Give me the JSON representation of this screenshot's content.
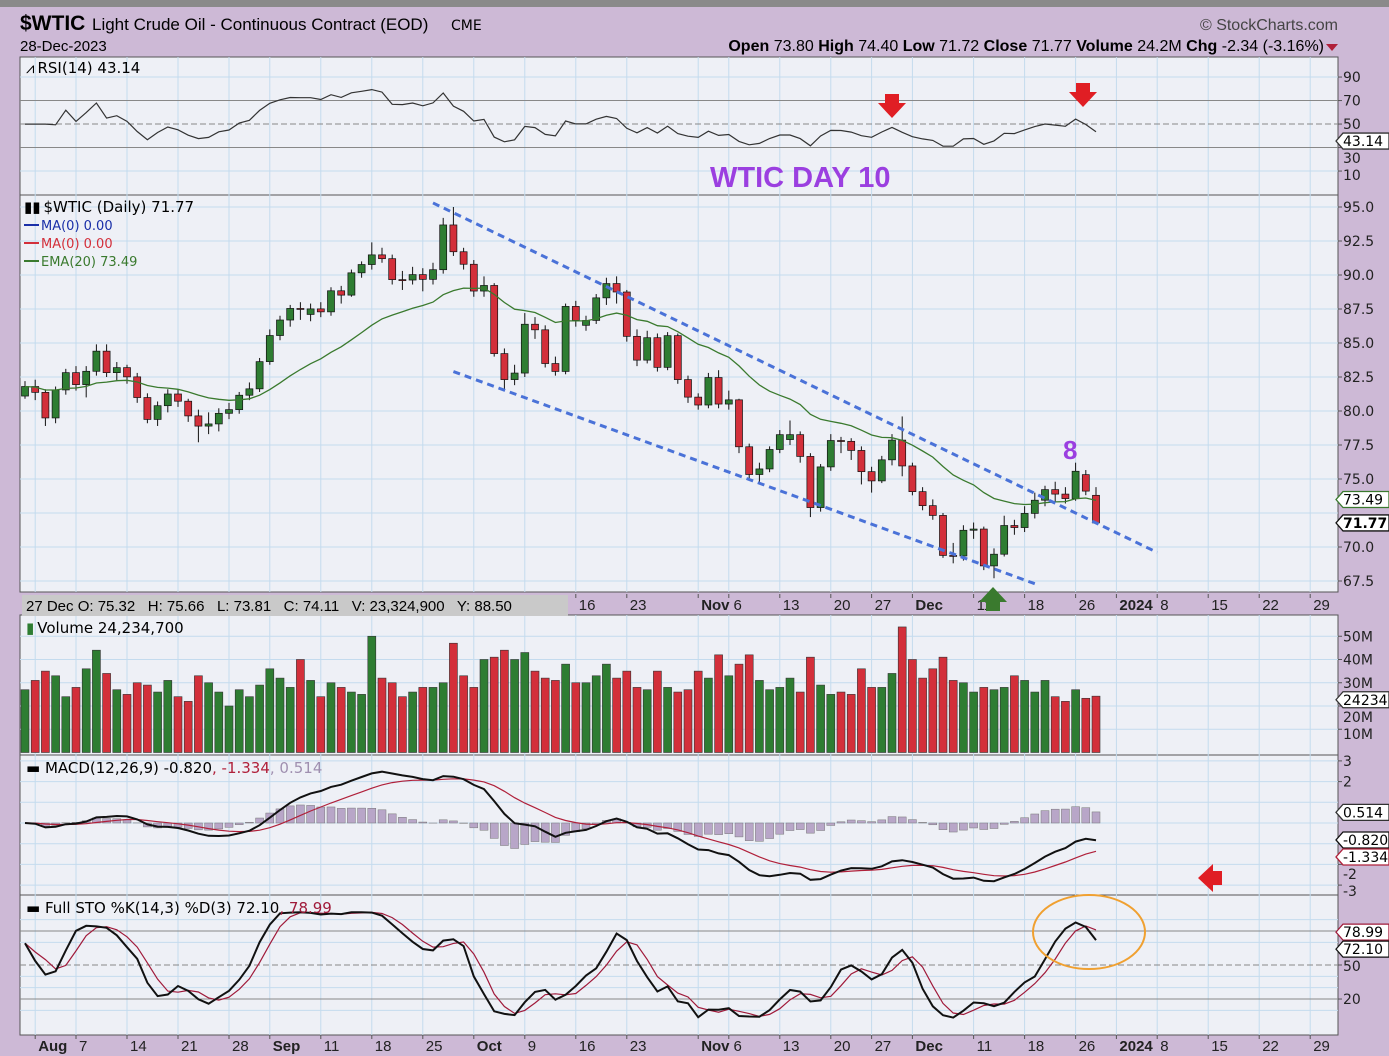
{
  "header": {
    "symbol": "$WTIC",
    "name": "Light Crude Oil - Continuous Contract (EOD)",
    "exchange": "CME",
    "date": "28-Dec-2023",
    "copyright": "© StockCharts.com",
    "open_label": "Open",
    "open": "73.80",
    "high_label": "High",
    "high": "74.40",
    "low_label": "Low",
    "low": "71.72",
    "close_label": "Close",
    "close": "71.77",
    "volume_label": "Volume",
    "volume": "24.2M",
    "chg_label": "Chg",
    "chg": "-2.34 (-3.16%)"
  },
  "info_box": "27 Dec O: 75.32   H: 75.66   L: 73.81   C: 74.11   V: 23,324,900   Y: 88.50",
  "colors": {
    "up": "#2e7d32",
    "down": "#d32f3a",
    "background": "#cdb9d6",
    "plot": "#eef0f6",
    "grid": "#c4dbee",
    "trendline": "#4a72d8",
    "annotation": "#9b3fe0",
    "ema": "#3a7a2e",
    "circle": "#f0a030"
  },
  "annotations": {
    "title": "WTIC DAY 10",
    "count": "8"
  },
  "chart_data": [
    {
      "type": "candlestick",
      "title": "$WTIC (Daily) 71.77",
      "legend": [
        {
          "label": "MA(0) 0.00",
          "color": "#1a2fa8"
        },
        {
          "label": "MA(0) 0.00",
          "color": "#d32f3a"
        },
        {
          "label": "EMA(20) 73.49",
          "color": "#3a7a2e"
        }
      ],
      "yticks": [
        "95.0",
        "92.5",
        "90.0",
        "87.5",
        "85.0",
        "82.5",
        "80.0",
        "77.5",
        "75.0",
        "70.0",
        "67.5"
      ],
      "ylim": [
        67,
        95.9
      ],
      "last_values": {
        "ema20": "73.49",
        "close": "71.77"
      },
      "dates": [
        "2023-07-31",
        "2023-08-01",
        "2023-08-02",
        "2023-08-03",
        "2023-08-04",
        "2023-08-07",
        "2023-08-08",
        "2023-08-09",
        "2023-08-10",
        "2023-08-11",
        "2023-08-14",
        "2023-08-15",
        "2023-08-16",
        "2023-08-17",
        "2023-08-18",
        "2023-08-21",
        "2023-08-22",
        "2023-08-23",
        "2023-08-24",
        "2023-08-25",
        "2023-08-28",
        "2023-08-29",
        "2023-08-30",
        "2023-08-31",
        "2023-09-01",
        "2023-09-05",
        "2023-09-06",
        "2023-09-07",
        "2023-09-08",
        "2023-09-11",
        "2023-09-12",
        "2023-09-13",
        "2023-09-14",
        "2023-09-15",
        "2023-09-18",
        "2023-09-19",
        "2023-09-20",
        "2023-09-21",
        "2023-09-22",
        "2023-09-25",
        "2023-09-26",
        "2023-09-27",
        "2023-09-28",
        "2023-09-29",
        "2023-10-02",
        "2023-10-03",
        "2023-10-04",
        "2023-10-05",
        "2023-10-06",
        "2023-10-09",
        "2023-10-10",
        "2023-10-11",
        "2023-10-12",
        "2023-10-13",
        "2023-10-16",
        "2023-10-17",
        "2023-10-18",
        "2023-10-19",
        "2023-10-20",
        "2023-10-23",
        "2023-10-24",
        "2023-10-25",
        "2023-10-26",
        "2023-10-27",
        "2023-10-30",
        "2023-10-31",
        "2023-11-01",
        "2023-11-02",
        "2023-11-03",
        "2023-11-06",
        "2023-11-07",
        "2023-11-08",
        "2023-11-09",
        "2023-11-10",
        "2023-11-13",
        "2023-11-14",
        "2023-11-15",
        "2023-11-16",
        "2023-11-17",
        "2023-11-20",
        "2023-11-21",
        "2023-11-22",
        "2023-11-24",
        "2023-11-27",
        "2023-11-28",
        "2023-11-29",
        "2023-11-30",
        "2023-12-01",
        "2023-12-04",
        "2023-12-05",
        "2023-12-06",
        "2023-12-07",
        "2023-12-08",
        "2023-12-11",
        "2023-12-12",
        "2023-12-13",
        "2023-12-14",
        "2023-12-15",
        "2023-12-18",
        "2023-12-19",
        "2023-12-20",
        "2023-12-21",
        "2023-12-22",
        "2023-12-26",
        "2023-12-27",
        "2023-12-28"
      ],
      "ohlc": [
        [
          81.1,
          82.2,
          80.9,
          81.8
        ],
        [
          81.8,
          82.3,
          80.8,
          81.37
        ],
        [
          81.37,
          81.6,
          78.9,
          79.49
        ],
        [
          79.49,
          81.8,
          79.1,
          81.55
        ],
        [
          81.55,
          83.1,
          81.2,
          82.82
        ],
        [
          82.82,
          83.3,
          81.5,
          81.94
        ],
        [
          81.94,
          83.3,
          81.0,
          82.92
        ],
        [
          82.92,
          84.9,
          82.6,
          84.4
        ],
        [
          84.4,
          84.9,
          82.5,
          82.82
        ],
        [
          82.82,
          83.6,
          82.2,
          83.19
        ],
        [
          83.19,
          83.4,
          82.0,
          82.51
        ],
        [
          82.51,
          82.8,
          80.6,
          80.99
        ],
        [
          80.99,
          81.3,
          79.1,
          79.38
        ],
        [
          79.38,
          80.7,
          78.9,
          80.39
        ],
        [
          80.39,
          81.6,
          79.9,
          81.25
        ],
        [
          81.25,
          81.6,
          80.3,
          80.72
        ],
        [
          80.72,
          80.9,
          79.2,
          79.64
        ],
        [
          79.64,
          80.1,
          77.7,
          78.89
        ],
        [
          78.89,
          79.9,
          78.3,
          79.05
        ],
        [
          79.05,
          80.2,
          78.5,
          79.83
        ],
        [
          79.83,
          80.6,
          79.4,
          80.1
        ],
        [
          80.1,
          81.4,
          79.8,
          81.16
        ],
        [
          81.16,
          82.1,
          80.8,
          81.63
        ],
        [
          81.63,
          83.9,
          81.4,
          83.63
        ],
        [
          83.63,
          86.0,
          83.4,
          85.55
        ],
        [
          85.55,
          87.0,
          85.2,
          86.69
        ],
        [
          86.69,
          87.8,
          86.2,
          87.54
        ],
        [
          87.54,
          88.0,
          86.7,
          87.51
        ],
        [
          87.1,
          87.9,
          86.6,
          87.51
        ],
        [
          87.51,
          88.0,
          86.9,
          87.29
        ],
        [
          87.29,
          89.1,
          87.0,
          88.84
        ],
        [
          88.84,
          89.2,
          87.9,
          88.52
        ],
        [
          88.52,
          90.4,
          88.4,
          90.16
        ],
        [
          90.16,
          91.0,
          89.8,
          90.77
        ],
        [
          90.77,
          92.4,
          90.4,
          91.48
        ],
        [
          91.48,
          92.0,
          90.9,
          91.2
        ],
        [
          91.2,
          91.5,
          89.3,
          89.66
        ],
        [
          89.66,
          90.3,
          88.9,
          89.63
        ],
        [
          89.63,
          90.6,
          89.3,
          90.03
        ],
        [
          90.03,
          90.5,
          88.8,
          89.68
        ],
        [
          89.68,
          90.9,
          89.3,
          90.39
        ],
        [
          90.39,
          94.2,
          90.1,
          93.68
        ],
        [
          93.68,
          95.0,
          91.4,
          91.71
        ],
        [
          91.71,
          92.0,
          90.4,
          90.79
        ],
        [
          90.79,
          91.1,
          88.4,
          88.82
        ],
        [
          88.82,
          89.9,
          88.4,
          89.23
        ],
        [
          89.23,
          89.4,
          84.0,
          84.22
        ],
        [
          84.22,
          84.6,
          81.5,
          82.31
        ],
        [
          82.31,
          83.4,
          81.9,
          82.79
        ],
        [
          82.79,
          87.2,
          82.5,
          86.38
        ],
        [
          86.38,
          86.9,
          85.3,
          85.97
        ],
        [
          85.97,
          86.3,
          83.2,
          83.49
        ],
        [
          83.49,
          84.0,
          82.6,
          82.91
        ],
        [
          82.91,
          87.9,
          82.7,
          87.69
        ],
        [
          87.69,
          88.1,
          86.2,
          86.66
        ],
        [
          86.3,
          87.0,
          85.9,
          86.66
        ],
        [
          86.66,
          88.6,
          86.4,
          88.32
        ],
        [
          88.32,
          89.8,
          87.8,
          89.37
        ],
        [
          89.37,
          89.9,
          87.9,
          88.75
        ],
        [
          88.75,
          88.9,
          85.1,
          85.49
        ],
        [
          85.49,
          86.0,
          83.3,
          83.74
        ],
        [
          83.74,
          85.9,
          83.5,
          85.39
        ],
        [
          85.39,
          85.7,
          82.9,
          83.21
        ],
        [
          83.21,
          85.8,
          83.0,
          85.54
        ],
        [
          85.54,
          85.7,
          82.0,
          82.31
        ],
        [
          82.31,
          82.6,
          80.6,
          81.02
        ],
        [
          81.02,
          81.3,
          80.1,
          80.44
        ],
        [
          80.44,
          82.8,
          80.2,
          82.46
        ],
        [
          82.46,
          83.0,
          80.2,
          80.51
        ],
        [
          80.51,
          81.5,
          80.1,
          80.82
        ],
        [
          80.82,
          80.9,
          76.9,
          77.37
        ],
        [
          77.37,
          77.6,
          74.9,
          75.33
        ],
        [
          75.33,
          76.2,
          74.8,
          75.74
        ],
        [
          75.74,
          77.4,
          75.5,
          77.17
        ],
        [
          77.17,
          78.6,
          76.9,
          78.26
        ],
        [
          77.9,
          79.3,
          77.5,
          78.26
        ],
        [
          78.26,
          78.5,
          76.2,
          76.66
        ],
        [
          76.66,
          76.9,
          72.2,
          72.9
        ],
        [
          72.9,
          76.1,
          72.6,
          75.89
        ],
        [
          75.89,
          78.3,
          75.6,
          77.83
        ],
        [
          77.83,
          78.1,
          76.9,
          77.77
        ],
        [
          77.77,
          78.0,
          76.4,
          77.1
        ],
        [
          77.1,
          77.4,
          74.6,
          75.54
        ],
        [
          75.54,
          75.9,
          74.0,
          74.86
        ],
        [
          74.86,
          76.7,
          74.7,
          76.41
        ],
        [
          76.41,
          78.3,
          76.0,
          77.86
        ],
        [
          77.86,
          79.6,
          75.2,
          75.96
        ],
        [
          75.96,
          76.2,
          73.8,
          74.07
        ],
        [
          74.07,
          74.4,
          72.7,
          73.04
        ],
        [
          73.04,
          73.5,
          72.0,
          72.32
        ],
        [
          72.32,
          72.5,
          69.2,
          69.38
        ],
        [
          69.38,
          70.3,
          68.8,
          69.34
        ],
        [
          69.34,
          71.6,
          69.0,
          71.23
        ],
        [
          71.23,
          71.8,
          70.6,
          71.32
        ],
        [
          71.32,
          71.5,
          68.3,
          68.61
        ],
        [
          68.61,
          69.9,
          67.7,
          69.47
        ],
        [
          69.47,
          72.3,
          69.3,
          71.58
        ],
        [
          71.58,
          72.0,
          70.9,
          71.43
        ],
        [
          71.43,
          73.0,
          71.1,
          72.47
        ],
        [
          72.47,
          74.0,
          72.1,
          73.44
        ],
        [
          73.44,
          74.5,
          73.0,
          74.22
        ],
        [
          74.22,
          74.8,
          73.3,
          73.89
        ],
        [
          73.89,
          74.4,
          73.2,
          73.56
        ],
        [
          73.56,
          76.2,
          73.4,
          75.57
        ],
        [
          75.32,
          75.66,
          73.81,
          74.11
        ],
        [
          73.8,
          74.4,
          71.72,
          71.77
        ]
      ],
      "trendlines": [
        {
          "name": "upper",
          "from": [
            "2023-09-26",
            95.3
          ],
          "to": [
            "2024-01-08",
            69.6
          ]
        },
        {
          "name": "lower",
          "from": [
            "2023-09-28",
            82.9
          ],
          "to": [
            "2023-12-19",
            67.3
          ]
        }
      ]
    },
    {
      "type": "line",
      "title": "RSI(14) 43.14",
      "ylim": [
        0,
        100
      ],
      "yticks": [
        "90",
        "70",
        "50",
        "30",
        "10"
      ],
      "reference_lines": [
        70,
        50,
        30
      ],
      "last_value": "43.14"
    },
    {
      "type": "bar",
      "title": "Volume 24,234,700",
      "unit": "M",
      "yticks": [
        "50M",
        "40M",
        "30M",
        "20M",
        "10M"
      ],
      "last_value": "24234700",
      "values": [
        27,
        31,
        35,
        33,
        24,
        28,
        36,
        44,
        34,
        27,
        25,
        30,
        29,
        26,
        31,
        24,
        22,
        33,
        30,
        26,
        20,
        27,
        24,
        29,
        36,
        32,
        28,
        40,
        31,
        24,
        30,
        28,
        26,
        25,
        50,
        32,
        30,
        24,
        26,
        28,
        28,
        30,
        47,
        33,
        28,
        40,
        41,
        44,
        40,
        43,
        35,
        32,
        31,
        38,
        30,
        30,
        33,
        38,
        32,
        35,
        28,
        27,
        35,
        28,
        26,
        27,
        35,
        32,
        42,
        33,
        38,
        42,
        31,
        27,
        28,
        32,
        26,
        41,
        29,
        25,
        26,
        25,
        36,
        28,
        28,
        34,
        54,
        40,
        32,
        36,
        41,
        31,
        30,
        26,
        28,
        27,
        28,
        33,
        31,
        26,
        31,
        24,
        22,
        27,
        23.32,
        24.23
      ]
    },
    {
      "type": "line",
      "title_prefix": "MACD(12,26,9) -0.820",
      "signal_text": ", -1.334",
      "hist_text": ", 0.514",
      "yticks": [
        "3",
        "2",
        "1",
        "0",
        "-1",
        "-2",
        "-3"
      ],
      "ylim": [
        -3.5,
        3.3
      ],
      "last_values": {
        "macd": "-0.820",
        "signal": "-1.334",
        "histogram": "0.514"
      }
    },
    {
      "type": "line",
      "title_prefix": "Full STO %K(14,3) %D(3) 72.10",
      "d_text": ", 78.99",
      "ylim": [
        0,
        100
      ],
      "yticks": [
        "50",
        "20"
      ],
      "reference_lines": [
        80,
        50,
        20
      ],
      "last_values": {
        "k": "72.10",
        "d": "78.99"
      }
    }
  ],
  "x_axis": {
    "top_labels": [
      [
        "2023-10-16",
        "16"
      ],
      [
        "2023-10-23",
        "23"
      ],
      [
        "2023-11-01",
        "Nov",
        true
      ],
      [
        "2023-11-06",
        "6"
      ],
      [
        "2023-11-13",
        "13"
      ],
      [
        "2023-11-20",
        "20"
      ],
      [
        "2023-11-27",
        "27"
      ],
      [
        "2023-12-01",
        "Dec",
        true
      ],
      [
        "2023-12-11",
        "11"
      ],
      [
        "2023-12-18",
        "18"
      ],
      [
        "2023-12-26",
        "26"
      ],
      [
        "2024-01-02",
        "2024",
        true
      ],
      [
        "2024-01-08",
        "8"
      ],
      [
        "2024-01-15",
        "15"
      ],
      [
        "2024-01-22",
        "22"
      ],
      [
        "2024-01-29",
        "29"
      ]
    ],
    "bottom_labels": [
      [
        "2023-08-01",
        "Aug",
        true
      ],
      [
        "2023-08-07",
        "7"
      ],
      [
        "2023-08-14",
        "14"
      ],
      [
        "2023-08-21",
        "21"
      ],
      [
        "2023-08-28",
        "28"
      ],
      [
        "2023-09-01",
        "Sep",
        true
      ],
      [
        "2023-09-11",
        "11"
      ],
      [
        "2023-09-18",
        "18"
      ],
      [
        "2023-09-25",
        "25"
      ],
      [
        "2023-10-02",
        "Oct",
        true
      ],
      [
        "2023-10-09",
        "9"
      ],
      [
        "2023-10-16",
        "16"
      ],
      [
        "2023-10-23",
        "23"
      ],
      [
        "2023-11-01",
        "Nov",
        true
      ],
      [
        "2023-11-06",
        "6"
      ],
      [
        "2023-11-13",
        "13"
      ],
      [
        "2023-11-20",
        "20"
      ],
      [
        "2023-11-27",
        "27"
      ],
      [
        "2023-12-01",
        "Dec",
        true
      ],
      [
        "2023-12-11",
        "11"
      ],
      [
        "2023-12-18",
        "18"
      ],
      [
        "2023-12-26",
        "26"
      ],
      [
        "2024-01-02",
        "2024",
        true
      ],
      [
        "2024-01-08",
        "8"
      ],
      [
        "2024-01-15",
        "15"
      ],
      [
        "2024-01-22",
        "22"
      ],
      [
        "2024-01-29",
        "29"
      ]
    ]
  }
}
